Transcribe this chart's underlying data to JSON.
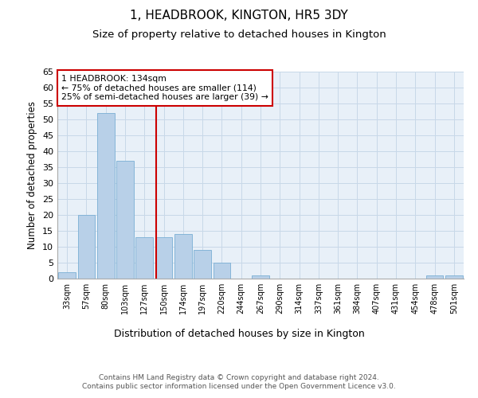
{
  "title_line1": "1, HEADBROOK, KINGTON, HR5 3DY",
  "title_line2": "Size of property relative to detached houses in Kington",
  "xlabel": "Distribution of detached houses by size in Kington",
  "ylabel": "Number of detached properties",
  "footer_line1": "Contains HM Land Registry data © Crown copyright and database right 2024.",
  "footer_line2": "Contains public sector information licensed under the Open Government Licence v3.0.",
  "bin_labels": [
    "33sqm",
    "57sqm",
    "80sqm",
    "103sqm",
    "127sqm",
    "150sqm",
    "174sqm",
    "197sqm",
    "220sqm",
    "244sqm",
    "267sqm",
    "290sqm",
    "314sqm",
    "337sqm",
    "361sqm",
    "384sqm",
    "407sqm",
    "431sqm",
    "454sqm",
    "478sqm",
    "501sqm"
  ],
  "bar_values": [
    2,
    20,
    52,
    37,
    13,
    13,
    14,
    9,
    5,
    0,
    1,
    0,
    0,
    0,
    0,
    0,
    0,
    0,
    0,
    1,
    1
  ],
  "bar_color": "#b8d0e8",
  "bar_edgecolor": "#7aafd4",
  "grid_color": "#c8d8e8",
  "background_color": "#e8f0f8",
  "annotation_text": "1 HEADBROOK: 134sqm\n← 75% of detached houses are smaller (114)\n25% of semi-detached houses are larger (39) →",
  "annotation_box_edgecolor": "#cc0000",
  "vline_x": 4.62,
  "vline_color": "#cc0000",
  "ylim": [
    0,
    65
  ],
  "yticks": [
    0,
    5,
    10,
    15,
    20,
    25,
    30,
    35,
    40,
    45,
    50,
    55,
    60,
    65
  ]
}
